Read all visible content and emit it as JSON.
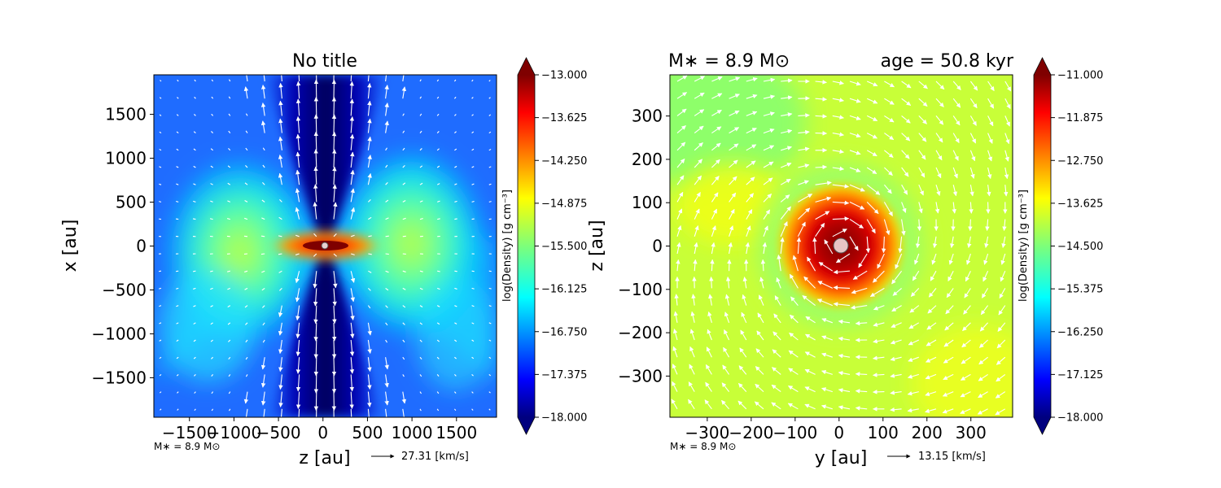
{
  "chart_data": [
    {
      "type": "heatmap",
      "title": "No title",
      "xlabel": "z [au]",
      "ylabel": "x [au]",
      "xlim": [
        -1900,
        1950
      ],
      "ylim": [
        -1950,
        1950
      ],
      "xticks": [
        -1500,
        -1000,
        -500,
        0,
        500,
        1000,
        1500
      ],
      "yticks": [
        1500,
        1000,
        500,
        0,
        -500,
        -1000,
        -1500
      ],
      "xtick_labels": [
        "−1500",
        "−1000",
        "−500",
        "0",
        "500",
        "1000",
        "1500"
      ],
      "ytick_labels": [
        "1500",
        "1000",
        "500",
        "0",
        "−500",
        "−1000",
        "−1500"
      ],
      "colorbar": {
        "label": "log(Density) [g cm⁻³]",
        "range": [
          -18.0,
          -13.0
        ],
        "ticks": [
          "−13.000",
          "−13.625",
          "−14.250",
          "−14.875",
          "−15.500",
          "−16.125",
          "−16.750",
          "−17.375",
          "−18.000"
        ]
      },
      "features": [
        {
          "kind": "disk",
          "center": [
            0,
            0
          ],
          "half_width": 550,
          "half_height": 120,
          "peak": -13.3
        },
        {
          "kind": "outflow_cavity",
          "axis": "x",
          "opening_half_width_at_edge": 500,
          "density": -17.6
        },
        {
          "kind": "envelope_wings",
          "density_range": [
            -16.5,
            -14.9
          ]
        }
      ],
      "star_marker": {
        "z": 0,
        "x": 0
      },
      "footer_left": "M∗ = 8.9 M⊙",
      "vector_key": {
        "speed": 27.31,
        "label": "27.31 [km/s]"
      }
    },
    {
      "type": "heatmap",
      "title_left": "M∗ = 8.9 M⊙",
      "title_right": "age = 50.8 kyr",
      "xlabel": "y [au]",
      "ylabel": "z [au]",
      "xlim": [
        -385,
        395
      ],
      "ylim": [
        -395,
        395
      ],
      "xticks": [
        -300,
        -200,
        -100,
        0,
        100,
        200,
        300
      ],
      "yticks": [
        300,
        200,
        100,
        0,
        -100,
        -200,
        -300
      ],
      "xtick_labels": [
        "−300",
        "−200",
        "−100",
        "0",
        "100",
        "200",
        "300"
      ],
      "ytick_labels": [
        "300",
        "200",
        "100",
        "0",
        "−100",
        "−200",
        "−300"
      ],
      "colorbar": {
        "label": "log(Density) [g cm⁻³]",
        "range": [
          -18.0,
          -11.0
        ],
        "ticks": [
          "−11.000",
          "−11.875",
          "−12.750",
          "−13.625",
          "−14.500",
          "−15.375",
          "−16.250",
          "−17.125",
          "−18.000"
        ]
      },
      "features": [
        {
          "kind": "central_core",
          "center": [
            0,
            0
          ],
          "radius": 130,
          "peak": -11.4
        },
        {
          "kind": "ring",
          "radius": 200,
          "density": -14.2
        },
        {
          "kind": "background",
          "density": -13.8
        }
      ],
      "star_marker": {
        "y": 0,
        "z": 0
      },
      "footer_left": "M∗ = 8.9 M⊙",
      "vector_key": {
        "speed": 13.15,
        "label": "13.15 [km/s]"
      }
    }
  ]
}
